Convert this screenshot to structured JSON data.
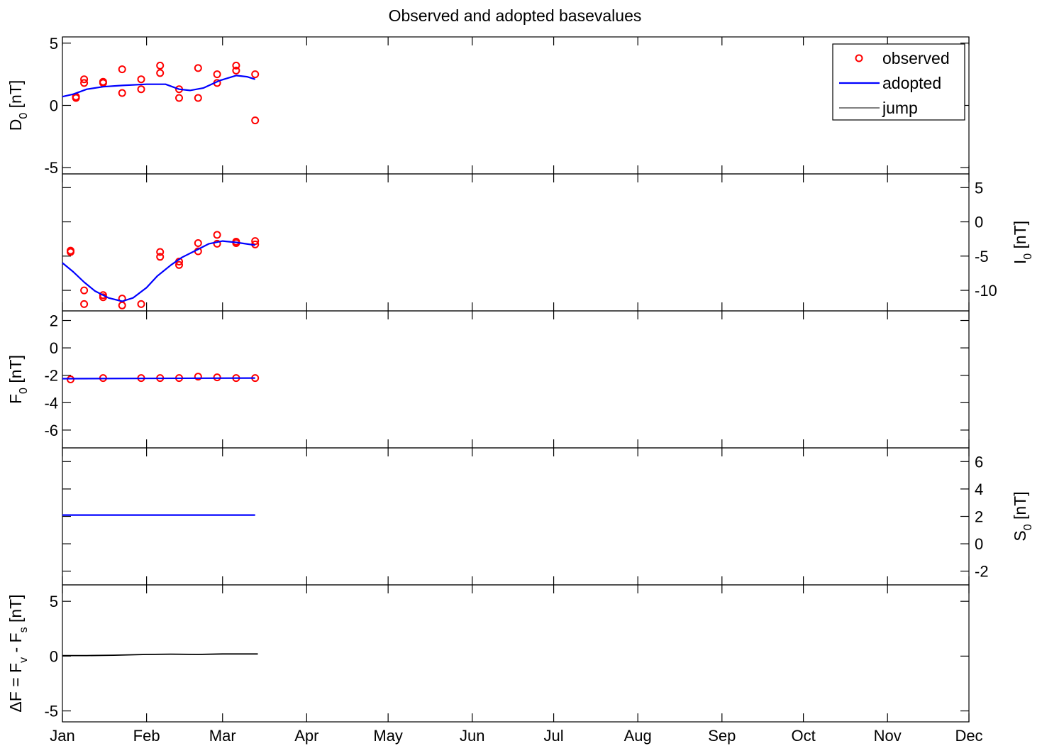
{
  "title": "Observed and adopted basevalues",
  "months": [
    "Jan",
    "Feb",
    "Mar",
    "Apr",
    "May",
    "Jun",
    "Jul",
    "Aug",
    "Sep",
    "Oct",
    "Nov",
    "Dec"
  ],
  "legend": {
    "position": "top-right",
    "items": [
      "observed",
      "adopted",
      "jump"
    ]
  },
  "colors": {
    "observed": "#ff0000",
    "adopted": "#0000ff",
    "jump": "#808080",
    "delta": "#000000"
  },
  "chart_data": [
    {
      "type": "scatter",
      "panel": "D0",
      "ylabel": {
        "main": "D",
        "sub": "0",
        "unit": " [nT]"
      },
      "yaxis_side": "left",
      "ylim": [
        -5.5,
        5.5
      ],
      "yticks": [
        "-5",
        "0",
        "5"
      ],
      "xlim": [
        "2014-01-01",
        "2014-12-01"
      ],
      "series": [
        {
          "name": "observed",
          "mode": "markers",
          "x": [
            "2014-01-06",
            "2014-01-06",
            "2014-01-09",
            "2014-01-09",
            "2014-01-16",
            "2014-01-16",
            "2014-01-23",
            "2014-01-23",
            "2014-01-30",
            "2014-01-30",
            "2014-02-06",
            "2014-02-06",
            "2014-02-13",
            "2014-02-13",
            "2014-02-20",
            "2014-02-20",
            "2014-02-27",
            "2014-02-27",
            "2014-03-06",
            "2014-03-06",
            "2014-03-13",
            "2014-03-13"
          ],
          "y": [
            0.7,
            0.6,
            2.1,
            1.8,
            1.9,
            1.8,
            2.9,
            1.0,
            2.1,
            1.3,
            3.2,
            2.6,
            1.3,
            0.6,
            3.0,
            0.6,
            2.5,
            1.8,
            3.2,
            2.8,
            2.5,
            -1.2
          ]
        },
        {
          "name": "adopted",
          "mode": "line",
          "x": [
            "2014-01-01",
            "2014-01-05",
            "2014-01-10",
            "2014-01-16",
            "2014-01-23",
            "2014-02-01",
            "2014-02-08",
            "2014-02-13",
            "2014-02-17",
            "2014-02-22",
            "2014-02-28",
            "2014-03-06",
            "2014-03-10",
            "2014-03-13"
          ],
          "y": [
            0.7,
            0.9,
            1.3,
            1.5,
            1.6,
            1.7,
            1.7,
            1.3,
            1.2,
            1.4,
            2.0,
            2.4,
            2.3,
            2.1
          ]
        }
      ]
    },
    {
      "type": "scatter",
      "panel": "I0",
      "ylabel": {
        "main": "I",
        "sub": "0",
        "unit": " [nT]"
      },
      "yaxis_side": "right",
      "ylim": [
        -13,
        7
      ],
      "yticks": [
        "5",
        "0",
        "-5",
        "-10"
      ],
      "xlim": [
        "2014-01-01",
        "2014-12-01"
      ],
      "series": [
        {
          "name": "observed",
          "mode": "markers",
          "x": [
            "2014-01-04",
            "2014-01-04",
            "2014-01-09",
            "2014-01-09",
            "2014-01-16",
            "2014-01-16",
            "2014-01-23",
            "2014-01-23",
            "2014-01-30",
            "2014-02-06",
            "2014-02-06",
            "2014-02-13",
            "2014-02-13",
            "2014-02-20",
            "2014-02-20",
            "2014-02-27",
            "2014-02-27",
            "2014-03-06",
            "2014-03-06",
            "2014-03-13",
            "2014-03-13"
          ],
          "y": [
            -4.2,
            -4.4,
            -10.0,
            -12.0,
            -10.7,
            -11.0,
            -11.2,
            -12.2,
            -12.0,
            -4.4,
            -5.1,
            -5.8,
            -6.3,
            -3.1,
            -4.3,
            -1.9,
            -3.2,
            -2.9,
            -3.1,
            -2.8,
            -3.3
          ]
        },
        {
          "name": "adopted",
          "mode": "line",
          "x": [
            "2014-01-01",
            "2014-01-05",
            "2014-01-09",
            "2014-01-13",
            "2014-01-18",
            "2014-01-23",
            "2014-01-27",
            "2014-02-01",
            "2014-02-05",
            "2014-02-10",
            "2014-02-14",
            "2014-02-19",
            "2014-02-24",
            "2014-03-01",
            "2014-03-06",
            "2014-03-13"
          ],
          "y": [
            -6.0,
            -7.3,
            -8.8,
            -10.1,
            -11.1,
            -11.6,
            -11.1,
            -9.6,
            -7.9,
            -6.3,
            -5.2,
            -4.2,
            -3.2,
            -2.8,
            -3.0,
            -3.4
          ]
        }
      ]
    },
    {
      "type": "scatter",
      "panel": "F0",
      "ylabel": {
        "main": "F",
        "sub": "0",
        "unit": " [nT]"
      },
      "yaxis_side": "left",
      "ylim": [
        -7.3,
        2.7
      ],
      "yticks": [
        "2",
        "0",
        "-2",
        "-4",
        "-6"
      ],
      "xlim": [
        "2014-01-01",
        "2014-12-01"
      ],
      "series": [
        {
          "name": "observed",
          "mode": "markers",
          "x": [
            "2014-01-04",
            "2014-01-16",
            "2014-01-30",
            "2014-02-06",
            "2014-02-13",
            "2014-02-20",
            "2014-02-27",
            "2014-03-06",
            "2014-03-13"
          ],
          "y": [
            -2.3,
            -2.2,
            -2.2,
            -2.2,
            -2.2,
            -2.1,
            -2.15,
            -2.2,
            -2.2
          ]
        },
        {
          "name": "adopted",
          "mode": "line",
          "x": [
            "2014-01-01",
            "2014-03-13"
          ],
          "y": [
            -2.25,
            -2.2
          ]
        }
      ]
    },
    {
      "type": "line",
      "panel": "S0",
      "ylabel": {
        "main": "S",
        "sub": "0",
        "unit": " [nT]"
      },
      "yaxis_side": "right",
      "ylim": [
        -3,
        7
      ],
      "yticks": [
        "6",
        "4",
        "2",
        "0",
        "-2"
      ],
      "xlim": [
        "2014-01-01",
        "2014-12-01"
      ],
      "series": [
        {
          "name": "adopted",
          "mode": "line",
          "x": [
            "2014-01-01",
            "2014-03-13"
          ],
          "y": [
            2.1,
            2.1
          ]
        }
      ]
    },
    {
      "type": "line",
      "panel": "dF",
      "ylabel": {
        "main": "ΔF = F",
        "sub1": "v",
        "mid": " - F",
        "sub2": "s",
        "unit": " [nT]"
      },
      "yaxis_side": "left",
      "ylim": [
        -6,
        6.5
      ],
      "yticks": [
        "5",
        "0",
        "-5"
      ],
      "xlim": [
        "2014-01-01",
        "2014-12-01"
      ],
      "series": [
        {
          "name": "ΔF",
          "mode": "line",
          "x": [
            "2014-01-01",
            "2014-01-10",
            "2014-01-20",
            "2014-02-01",
            "2014-02-10",
            "2014-02-20",
            "2014-03-01",
            "2014-03-10",
            "2014-03-14"
          ],
          "y": [
            0.05,
            0.05,
            0.08,
            0.15,
            0.18,
            0.15,
            0.2,
            0.2,
            0.2
          ]
        }
      ]
    }
  ]
}
